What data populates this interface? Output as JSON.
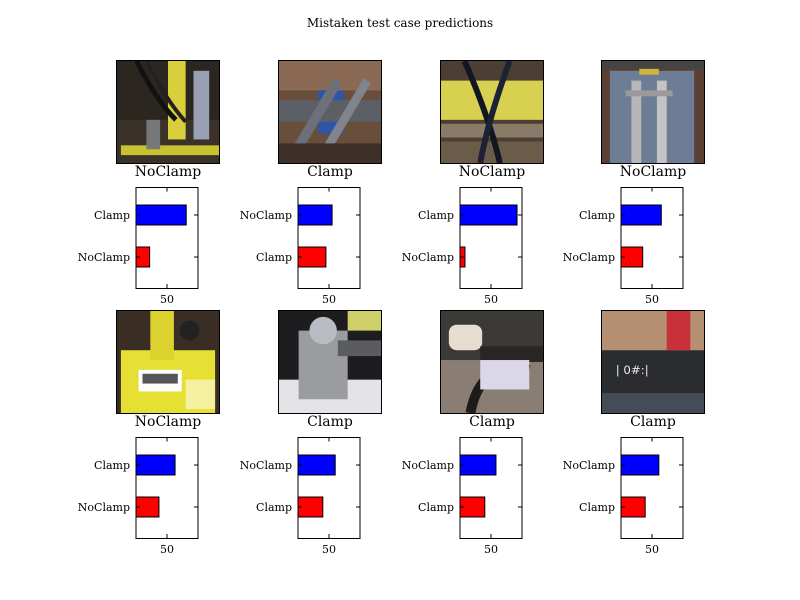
{
  "title": "Mistaken test case predictions",
  "colors": {
    "top_bar": "#0000ff",
    "bottom_bar": "#ff0000",
    "axes": "#000000"
  },
  "chart_data": [
    {
      "type": "bar",
      "orientation": "horizontal",
      "caption": "NoClamp",
      "image": "yellow-clamp-with-hoses",
      "categories": [
        "NoClamp",
        "Clamp"
      ],
      "values": [
        22,
        81
      ],
      "tick": 50,
      "xlim": [
        0,
        100
      ]
    },
    {
      "type": "bar",
      "orientation": "horizontal",
      "caption": "Clamp",
      "image": "blue-pipe-clamp-in-trench",
      "categories": [
        "Clamp",
        "NoClamp"
      ],
      "values": [
        45,
        55
      ],
      "tick": 50,
      "xlim": [
        0,
        100
      ]
    },
    {
      "type": "bar",
      "orientation": "horizontal",
      "caption": "NoClamp",
      "image": "yellow-pipe-crossing-hoses",
      "categories": [
        "NoClamp",
        "Clamp"
      ],
      "values": [
        8,
        92
      ],
      "tick": 50,
      "xlim": [
        0,
        100
      ]
    },
    {
      "type": "bar",
      "orientation": "horizontal",
      "caption": "NoClamp",
      "image": "tarp-with-steel-clamp",
      "categories": [
        "NoClamp",
        "Clamp"
      ],
      "values": [
        35,
        65
      ],
      "tick": 50,
      "xlim": [
        0,
        100
      ]
    },
    {
      "type": "bar",
      "orientation": "horizontal",
      "caption": "NoClamp",
      "image": "yellow-fitting-with-barcode",
      "categories": [
        "NoClamp",
        "Clamp"
      ],
      "values": [
        37,
        63
      ],
      "tick": 50,
      "xlim": [
        0,
        100
      ]
    },
    {
      "type": "bar",
      "orientation": "horizontal",
      "caption": "Clamp",
      "image": "grey-pipe-joint-in-pit",
      "categories": [
        "Clamp",
        "NoClamp"
      ],
      "values": [
        40,
        60
      ],
      "tick": 50,
      "xlim": [
        0,
        100
      ]
    },
    {
      "type": "bar",
      "orientation": "horizontal",
      "caption": "Clamp",
      "image": "white-valve-and-black-pipes",
      "categories": [
        "Clamp",
        "NoClamp"
      ],
      "values": [
        40,
        58
      ],
      "tick": 50,
      "xlim": [
        0,
        100
      ]
    },
    {
      "type": "bar",
      "orientation": "horizontal",
      "caption": "Clamp",
      "image": "black-pipe-with-markings",
      "categories": [
        "Clamp",
        "NoClamp"
      ],
      "values": [
        39,
        61
      ],
      "tick": 50,
      "xlim": [
        0,
        100
      ]
    }
  ]
}
